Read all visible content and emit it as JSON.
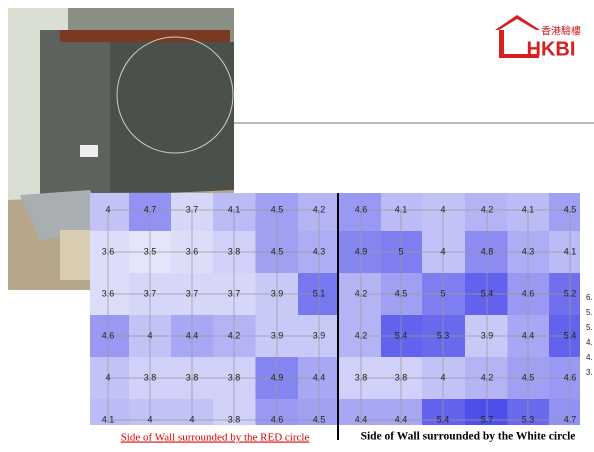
{
  "logo": {
    "chinese": "香港驗樓",
    "name": "HKBI"
  },
  "grids": [
    {
      "caption": "Side of Wall surrounded by the RED circle",
      "rows": [
        [
          4,
          4.7,
          3.7,
          4.1,
          4.5,
          4.2
        ],
        [
          3.6,
          3.5,
          3.6,
          3.8,
          4.5,
          4.3
        ],
        [
          3.6,
          3.7,
          3.7,
          3.7,
          3.9,
          5.1
        ],
        [
          4.6,
          4,
          4.4,
          4.2,
          3.9,
          3.9
        ],
        [
          4,
          3.8,
          3.8,
          3.8,
          4.9,
          4.4
        ],
        [
          4.1,
          4,
          4,
          3.8,
          4.6,
          4.5
        ]
      ]
    },
    {
      "caption": "Side of Wall surrounded by the White circle",
      "rows": [
        [
          4.6,
          4.1,
          4,
          4.2,
          4.1,
          4.5
        ],
        [
          4.9,
          5,
          4,
          4.8,
          4.3,
          4.1
        ],
        [
          4.2,
          4.5,
          5,
          5.4,
          4.6,
          5.2
        ],
        [
          4.2,
          5.4,
          5.3,
          3.9,
          4.4,
          5.4
        ],
        [
          3.8,
          3.8,
          4,
          4.2,
          4.5,
          4.6
        ],
        [
          4.4,
          4.4,
          5.4,
          5.7,
          5.3,
          4.7
        ]
      ]
    }
  ],
  "legend": [
    "6.",
    "5.",
    "5.",
    "4.",
    "4.",
    "3."
  ]
}
